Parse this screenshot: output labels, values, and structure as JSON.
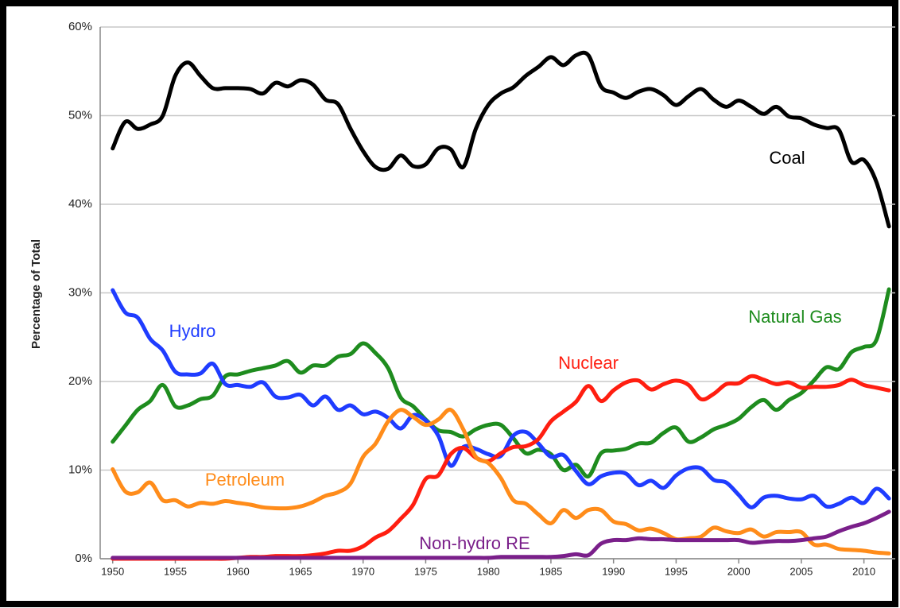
{
  "chart_data": {
    "type": "line",
    "y_label": "Percentage of Total",
    "x": [
      1950,
      1951,
      1952,
      1953,
      1954,
      1955,
      1956,
      1957,
      1958,
      1959,
      1960,
      1961,
      1962,
      1963,
      1964,
      1965,
      1966,
      1967,
      1968,
      1969,
      1970,
      1971,
      1972,
      1973,
      1974,
      1975,
      1976,
      1977,
      1978,
      1979,
      1980,
      1981,
      1982,
      1983,
      1984,
      1985,
      1986,
      1987,
      1988,
      1989,
      1990,
      1991,
      1992,
      1993,
      1994,
      1995,
      1996,
      1997,
      1998,
      1999,
      2000,
      2001,
      2002,
      2003,
      2004,
      2005,
      2006,
      2007,
      2008,
      2009,
      2010,
      2011,
      2012
    ],
    "series": [
      {
        "name": "Coal",
        "color": "#000000",
        "values": [
          46.3,
          49.3,
          48.5,
          49,
          50,
          54.5,
          56,
          54.5,
          53.1,
          53.1,
          53.1,
          53,
          52.5,
          53.7,
          53.3,
          54,
          53.5,
          51.8,
          51.3,
          48.5,
          46,
          44.2,
          44,
          45.5,
          44.3,
          44.5,
          46.3,
          46.2,
          44.2,
          48.5,
          51.2,
          52.5,
          53.2,
          54.5,
          55.5,
          56.6,
          55.7,
          56.8,
          56.8,
          53.3,
          52.6,
          52,
          52.7,
          53,
          52.3,
          51.2,
          52.2,
          53,
          51.8,
          51,
          51.7,
          51,
          50.2,
          51,
          49.9,
          49.7,
          49,
          48.6,
          48.4,
          44.8,
          45,
          42.5,
          37.5
        ]
      },
      {
        "name": "Natural Gas",
        "color": "#1e8c1e",
        "values": [
          13.2,
          15,
          16.8,
          17.8,
          19.6,
          17.2,
          17.3,
          18,
          18.4,
          20.6,
          20.8,
          21.2,
          21.5,
          21.8,
          22.3,
          21,
          21.8,
          21.8,
          22.8,
          23.1,
          24.3,
          23.2,
          21.5,
          18.2,
          17.2,
          15.7,
          14.5,
          14.3,
          13.8,
          14.6,
          15.1,
          15.1,
          13.6,
          11.9,
          12.3,
          11.8,
          10,
          10.6,
          9.3,
          11.9,
          12.2,
          12.4,
          13,
          13.1,
          14.2,
          14.8,
          13.2,
          13.7,
          14.6,
          15.1,
          15.8,
          17.1,
          17.9,
          16.8,
          17.9,
          18.7,
          20.1,
          21.6,
          21.4,
          23.3,
          23.9,
          24.7,
          30.4
        ]
      },
      {
        "name": "Hydro",
        "color": "#1f3cff",
        "values": [
          30.3,
          27.8,
          27.2,
          24.8,
          23.5,
          21.1,
          20.8,
          20.9,
          22,
          19.7,
          19.6,
          19.4,
          19.9,
          18.3,
          18.2,
          18.5,
          17.3,
          18.3,
          16.8,
          17.3,
          16.3,
          16.6,
          15.9,
          14.7,
          16.2,
          15.6,
          13.9,
          10.5,
          12.6,
          12.4,
          11.8,
          11.6,
          13.9,
          14.3,
          13,
          11.5,
          11.7,
          9.9,
          8.4,
          9.3,
          9.7,
          9.6,
          8.3,
          8.8,
          8,
          9.4,
          10.2,
          10.2,
          8.9,
          8.6,
          7.2,
          5.8,
          6.9,
          7.1,
          6.8,
          6.7,
          7.1,
          5.9,
          6.2,
          6.9,
          6.3,
          7.9,
          6.8
        ]
      },
      {
        "name": "Nuclear",
        "color": "#ff1e10",
        "values": [
          0,
          0,
          0,
          0,
          0,
          0,
          0,
          0,
          0,
          0,
          0.1,
          0.2,
          0.2,
          0.3,
          0.3,
          0.3,
          0.4,
          0.6,
          0.9,
          0.9,
          1.4,
          2.4,
          3.1,
          4.5,
          6.1,
          9,
          9.4,
          11.8,
          12.5,
          11.4,
          11,
          11.9,
          12.6,
          12.7,
          13.5,
          15.5,
          16.6,
          17.7,
          19.5,
          17.8,
          19,
          19.9,
          20.1,
          19.1,
          19.7,
          20.1,
          19.6,
          18,
          18.6,
          19.7,
          19.8,
          20.6,
          20.2,
          19.7,
          19.9,
          19.3,
          19.4,
          19.4,
          19.6,
          20.2,
          19.6,
          19.3,
          19
        ]
      },
      {
        "name": "Petroleum",
        "color": "#ff8c1a",
        "values": [
          10.1,
          7.6,
          7.5,
          8.6,
          6.6,
          6.6,
          5.9,
          6.3,
          6.2,
          6.5,
          6.3,
          6.1,
          5.8,
          5.7,
          5.7,
          5.9,
          6.4,
          7.1,
          7.5,
          8.5,
          11.5,
          13,
          15.5,
          16.8,
          16,
          15.1,
          15.7,
          16.8,
          14.6,
          11.5,
          10.8,
          9.1,
          6.6,
          6.2,
          5,
          4,
          5.5,
          4.6,
          5.5,
          5.5,
          4.2,
          3.9,
          3.2,
          3.4,
          2.9,
          2.2,
          2.3,
          2.5,
          3.5,
          3.1,
          2.9,
          3.3,
          2.5,
          3,
          3,
          3,
          1.6,
          1.6,
          1.1,
          1,
          0.9,
          0.7,
          0.6
        ]
      },
      {
        "name": "Non-hydro RE",
        "color": "#7a1f8a",
        "values": [
          0.1,
          0.1,
          0.1,
          0.1,
          0.1,
          0.1,
          0.1,
          0.1,
          0.1,
          0.1,
          0.1,
          0.1,
          0.1,
          0.1,
          0.1,
          0.1,
          0.1,
          0.1,
          0.1,
          0.1,
          0.1,
          0.1,
          0.1,
          0.1,
          0.1,
          0.1,
          0.1,
          0.1,
          0.1,
          0.1,
          0.1,
          0.2,
          0.2,
          0.2,
          0.2,
          0.2,
          0.3,
          0.5,
          0.4,
          1.7,
          2.1,
          2.1,
          2.3,
          2.2,
          2.2,
          2.1,
          2.1,
          2.1,
          2.1,
          2.1,
          2.1,
          1.8,
          1.9,
          2,
          2,
          2.1,
          2.3,
          2.5,
          3.1,
          3.6,
          4,
          4.6,
          5.3
        ]
      }
    ],
    "xlim": [
      1949,
      2012.5
    ],
    "xticks": [
      1950,
      1955,
      1960,
      1965,
      1970,
      1975,
      1980,
      1985,
      1990,
      1995,
      2000,
      2005,
      2010
    ],
    "ylim": [
      0,
      60
    ],
    "yticks": [
      {
        "value": 0,
        "label": "0%"
      },
      {
        "value": 10,
        "label": "10%"
      },
      {
        "value": 20,
        "label": "20%"
      },
      {
        "value": 30,
        "label": "30%"
      },
      {
        "value": 40,
        "label": "40%"
      },
      {
        "value": 50,
        "label": "50%"
      },
      {
        "value": 60,
        "label": "60%"
      }
    ],
    "grid": true
  }
}
